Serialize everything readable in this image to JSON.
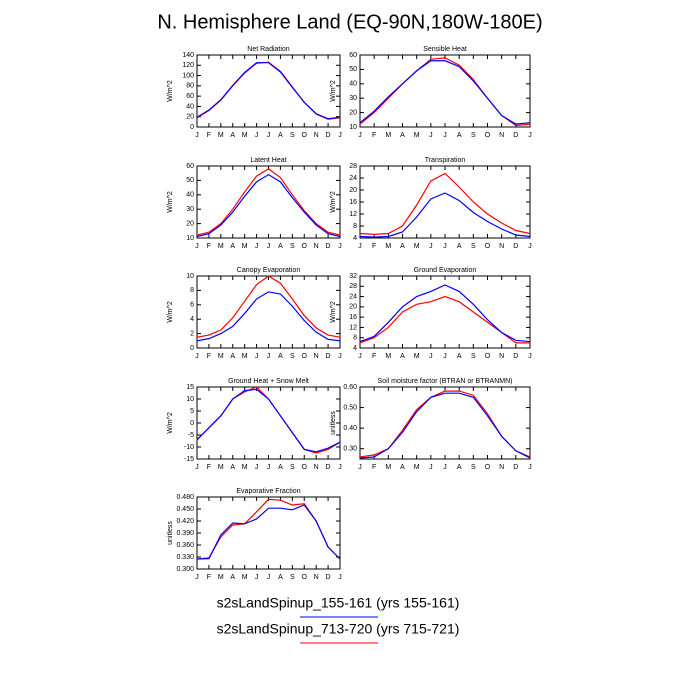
{
  "title": "N. Hemisphere Land (EQ-90N,180W-180E)",
  "legend": [
    {
      "label": "s2sLandSpinup_155-161 (yrs 155-161)",
      "color": "#0000ff"
    },
    {
      "label": "s2sLandSpinup_713-720 (yrs 715-721)",
      "color": "#ff0000"
    }
  ],
  "chart_data": [
    {
      "type": "line",
      "title": "Net Radiation",
      "ylabel": "W/m^2",
      "categories": [
        "J",
        "F",
        "M",
        "A",
        "M",
        "J",
        "J",
        "A",
        "S",
        "O",
        "N",
        "D",
        "J"
      ],
      "ylim": [
        0,
        140
      ],
      "yticks": [
        0,
        20,
        40,
        60,
        80,
        100,
        120,
        140
      ],
      "series": [
        {
          "color": "#ff0000",
          "values": [
            18,
            32,
            52,
            80,
            105,
            124,
            126,
            108,
            78,
            48,
            25,
            15,
            18
          ]
        },
        {
          "color": "#0000ff",
          "values": [
            19,
            33,
            53,
            81,
            106,
            125,
            125,
            107,
            77,
            48,
            26,
            16,
            19
          ]
        }
      ]
    },
    {
      "type": "line",
      "title": "Sensible Heat",
      "ylabel": "W/m^2",
      "categories": [
        "J",
        "F",
        "M",
        "A",
        "M",
        "J",
        "J",
        "A",
        "S",
        "O",
        "N",
        "D",
        "J"
      ],
      "ylim": [
        10,
        60
      ],
      "yticks": [
        10,
        20,
        30,
        40,
        50,
        60
      ],
      "series": [
        {
          "color": "#ff0000",
          "values": [
            12,
            20,
            30,
            40,
            49,
            57,
            58,
            53,
            43,
            30,
            18,
            11,
            12
          ]
        },
        {
          "color": "#0000ff",
          "values": [
            13,
            21,
            31,
            40,
            49,
            56,
            56,
            52,
            42,
            30,
            18,
            12,
            13
          ]
        }
      ]
    },
    {
      "type": "line",
      "title": "Latent Heat",
      "ylabel": "W/m^2",
      "categories": [
        "J",
        "F",
        "M",
        "A",
        "M",
        "J",
        "J",
        "A",
        "S",
        "O",
        "N",
        "D",
        "J"
      ],
      "ylim": [
        10,
        60
      ],
      "yticks": [
        10,
        20,
        30,
        40,
        50,
        60
      ],
      "series": [
        {
          "color": "#ff0000",
          "values": [
            12,
            14,
            20,
            30,
            42,
            53,
            58,
            52,
            40,
            29,
            20,
            14,
            12
          ]
        },
        {
          "color": "#0000ff",
          "values": [
            11,
            13,
            19,
            28,
            39,
            49,
            54,
            49,
            38,
            28,
            19,
            13,
            11
          ]
        }
      ]
    },
    {
      "type": "line",
      "title": "Transpiration",
      "ylabel": "W/m^2",
      "categories": [
        "J",
        "F",
        "M",
        "A",
        "M",
        "J",
        "J",
        "A",
        "S",
        "O",
        "N",
        "D",
        "J"
      ],
      "ylim": [
        4,
        28
      ],
      "yticks": [
        4,
        8,
        12,
        16,
        20,
        24,
        28
      ],
      "series": [
        {
          "color": "#ff0000",
          "values": [
            5.5,
            5.2,
            5.5,
            8,
            15,
            23,
            25.5,
            21,
            16,
            12,
            9,
            6.5,
            5.5
          ]
        },
        {
          "color": "#0000ff",
          "values": [
            4.5,
            4.3,
            4.5,
            6,
            11,
            17,
            19,
            16.5,
            12.5,
            9.5,
            7,
            5,
            4.5
          ]
        }
      ]
    },
    {
      "type": "line",
      "title": "Canopy Evaporation",
      "ylabel": "W/m^2",
      "categories": [
        "J",
        "F",
        "M",
        "A",
        "M",
        "J",
        "J",
        "A",
        "S",
        "O",
        "N",
        "D",
        "J"
      ],
      "ylim": [
        0,
        10
      ],
      "yticks": [
        0,
        2,
        4,
        6,
        8,
        10
      ],
      "series": [
        {
          "color": "#ff0000",
          "values": [
            1.5,
            1.8,
            2.5,
            4.2,
            6.5,
            8.8,
            10,
            9,
            6.8,
            4.5,
            2.8,
            1.8,
            1.5
          ]
        },
        {
          "color": "#0000ff",
          "values": [
            1,
            1.3,
            2,
            3,
            4.8,
            6.8,
            7.8,
            7.5,
            5.8,
            3.8,
            2.2,
            1.2,
            1
          ]
        }
      ]
    },
    {
      "type": "line",
      "title": "Ground Evaporation",
      "ylabel": "W/m^2",
      "categories": [
        "J",
        "F",
        "M",
        "A",
        "M",
        "J",
        "J",
        "A",
        "S",
        "O",
        "N",
        "D",
        "J"
      ],
      "ylim": [
        4,
        32
      ],
      "yticks": [
        4,
        8,
        12,
        16,
        20,
        24,
        28,
        32
      ],
      "series": [
        {
          "color": "#ff0000",
          "values": [
            6,
            8,
            12,
            18,
            21,
            22,
            24,
            22,
            18,
            14,
            10,
            6,
            6
          ]
        },
        {
          "color": "#0000ff",
          "values": [
            6.5,
            8.5,
            14,
            20,
            24,
            26,
            28.5,
            26,
            21,
            15,
            10,
            7,
            6.5
          ]
        }
      ]
    },
    {
      "type": "line",
      "title": "Ground Heat + Snow Melt",
      "ylabel": "W/m^2",
      "categories": [
        "J",
        "F",
        "M",
        "A",
        "M",
        "J",
        "J",
        "A",
        "S",
        "O",
        "N",
        "D",
        "J"
      ],
      "ylim": [
        -15,
        15
      ],
      "yticks": [
        -15,
        -10,
        -5,
        0,
        5,
        10,
        15
      ],
      "series": [
        {
          "color": "#ff0000",
          "values": [
            -7,
            -2,
            3,
            10,
            13,
            15,
            10,
            3,
            -4,
            -11,
            -12.5,
            -11,
            -8
          ]
        },
        {
          "color": "#0000ff",
          "values": [
            -7,
            -2,
            3,
            10,
            13.5,
            14,
            10,
            3,
            -4,
            -11,
            -12,
            -10.5,
            -8
          ]
        }
      ]
    },
    {
      "type": "line",
      "title": "Soil moisture factor (BTRAN or BTRANMN)",
      "ylabel": "unitless",
      "categories": [
        "J",
        "F",
        "M",
        "A",
        "M",
        "J",
        "J",
        "A",
        "S",
        "O",
        "N",
        "D",
        "J"
      ],
      "ylim": [
        0.25,
        0.6
      ],
      "yticks": [
        {
          "value": 0.3,
          "label": "0.30"
        },
        {
          "value": 0.4,
          "label": "0.40"
        },
        {
          "value": 0.5,
          "label": "0.50"
        },
        {
          "value": 0.6,
          "label": "0.60"
        }
      ],
      "series": [
        {
          "color": "#ff0000",
          "values": [
            0.26,
            0.27,
            0.3,
            0.39,
            0.49,
            0.55,
            0.58,
            0.58,
            0.56,
            0.47,
            0.36,
            0.29,
            0.26
          ]
        },
        {
          "color": "#0000ff",
          "values": [
            0.255,
            0.26,
            0.3,
            0.38,
            0.48,
            0.55,
            0.57,
            0.57,
            0.55,
            0.46,
            0.36,
            0.29,
            0.255
          ]
        }
      ]
    },
    {
      "type": "line",
      "title": "Evaporative Fraction",
      "ylabel": "unitless",
      "categories": [
        "J",
        "F",
        "M",
        "A",
        "M",
        "J",
        "J",
        "A",
        "S",
        "O",
        "N",
        "D",
        "J"
      ],
      "ylim": [
        0.3,
        0.48
      ],
      "yticks": [
        {
          "value": 0.3,
          "label": "0.300"
        },
        {
          "value": 0.33,
          "label": "0.330"
        },
        {
          "value": 0.36,
          "label": "0.360"
        },
        {
          "value": 0.39,
          "label": "0.390"
        },
        {
          "value": 0.42,
          "label": "0.420"
        },
        {
          "value": 0.45,
          "label": "0.450"
        },
        {
          "value": 0.48,
          "label": "0.480"
        }
      ],
      "series": [
        {
          "color": "#ff0000",
          "values": [
            0.325,
            0.328,
            0.38,
            0.41,
            0.413,
            0.443,
            0.474,
            0.472,
            0.46,
            0.463,
            0.42,
            0.355,
            0.325
          ]
        },
        {
          "color": "#0000ff",
          "values": [
            0.325,
            0.326,
            0.385,
            0.415,
            0.413,
            0.425,
            0.452,
            0.452,
            0.448,
            0.46,
            0.42,
            0.355,
            0.325
          ]
        }
      ]
    }
  ]
}
